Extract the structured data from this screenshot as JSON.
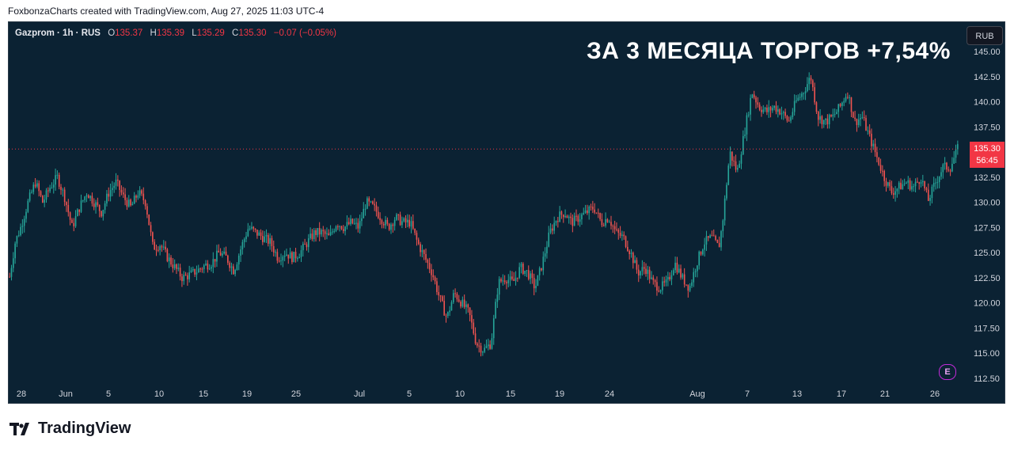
{
  "credit": "FoxbonzaCharts created with TradingView.com, Aug 27, 2025 11:03 UTC-4",
  "legend": {
    "symbol": "Gazprom · 1h · RUS",
    "open_label": "O",
    "open": "135.37",
    "high_label": "H",
    "high": "135.39",
    "low_label": "L",
    "low": "135.29",
    "close_label": "C",
    "close": "135.30",
    "change": "−0.07 (−0.05%)"
  },
  "headline": "ЗА 3 МЕСЯЦА ТОРГОВ +7,54%",
  "currency_button": "RUB",
  "last_price": {
    "price": "135.30",
    "countdown": "56:45"
  },
  "event_badge": "E",
  "logo_text": "TradingView",
  "colors": {
    "background": "#0b2233",
    "up": "#26a69a",
    "down": "#ef5350",
    "axis_text": "#d1d4dc",
    "last_price": "#f23645"
  },
  "chart_data": {
    "type": "candlestick",
    "y_ticks": [
      "145.00",
      "142.50",
      "140.00",
      "137.50",
      "135.00",
      "132.50",
      "130.00",
      "127.50",
      "125.00",
      "122.50",
      "120.00",
      "117.50",
      "115.00",
      "112.50"
    ],
    "ylim": [
      112.5,
      145
    ],
    "x_ticks": [
      "28",
      "Jun",
      "5",
      "10",
      "15",
      "19",
      "25",
      "Jul",
      "5",
      "10",
      "15",
      "19",
      "24",
      "Aug",
      "7",
      "13",
      "17",
      "21",
      "26"
    ],
    "last_price": 135.3,
    "price_path": [
      [
        0,
        122.6
      ],
      [
        3,
        126
      ],
      [
        6,
        127.5
      ],
      [
        10,
        130
      ],
      [
        14,
        132
      ],
      [
        18,
        130
      ],
      [
        22,
        131.5
      ],
      [
        26,
        132.5
      ],
      [
        30,
        130.5
      ],
      [
        34,
        127.5
      ],
      [
        38,
        129.5
      ],
      [
        42,
        131
      ],
      [
        46,
        130
      ],
      [
        50,
        129
      ],
      [
        54,
        131
      ],
      [
        58,
        132
      ],
      [
        62,
        130.5
      ],
      [
        66,
        129.5
      ],
      [
        70,
        131
      ],
      [
        74,
        130
      ],
      [
        78,
        125.5
      ],
      [
        82,
        125.8
      ],
      [
        86,
        124.5
      ],
      [
        90,
        123.5
      ],
      [
        94,
        122.5
      ],
      [
        98,
        122.8
      ],
      [
        102,
        123.2
      ],
      [
        106,
        123.7
      ],
      [
        110,
        124
      ],
      [
        114,
        125
      ],
      [
        118,
        124.5
      ],
      [
        122,
        123.2
      ],
      [
        126,
        125.5
      ],
      [
        130,
        127.5
      ],
      [
        134,
        127
      ],
      [
        138,
        126.5
      ],
      [
        142,
        126
      ],
      [
        146,
        124.5
      ],
      [
        150,
        125
      ],
      [
        154,
        124.5
      ],
      [
        158,
        125
      ],
      [
        162,
        126
      ],
      [
        166,
        127
      ],
      [
        170,
        127
      ],
      [
        174,
        126.5
      ],
      [
        178,
        128
      ],
      [
        182,
        127.5
      ],
      [
        186,
        128
      ],
      [
        190,
        127.5
      ],
      [
        194,
        130
      ],
      [
        198,
        129.5
      ],
      [
        202,
        128.5
      ],
      [
        206,
        127.5
      ],
      [
        210,
        128.5
      ],
      [
        214,
        128
      ],
      [
        218,
        128
      ],
      [
        222,
        126
      ],
      [
        226,
        124.5
      ],
      [
        230,
        123
      ],
      [
        234,
        120.5
      ],
      [
        238,
        118.5
      ],
      [
        242,
        121
      ],
      [
        246,
        120
      ],
      [
        250,
        119
      ],
      [
        254,
        116
      ],
      [
        258,
        115.3
      ],
      [
        262,
        116
      ],
      [
        266,
        122
      ],
      [
        270,
        122.5
      ],
      [
        274,
        122
      ],
      [
        278,
        123.5
      ],
      [
        282,
        123
      ],
      [
        286,
        121.5
      ],
      [
        290,
        124
      ],
      [
        294,
        127
      ],
      [
        298,
        128.5
      ],
      [
        302,
        129
      ],
      [
        306,
        128
      ],
      [
        310,
        128.5
      ],
      [
        314,
        129
      ],
      [
        318,
        129.5
      ],
      [
        322,
        128
      ],
      [
        326,
        128.5
      ],
      [
        330,
        127
      ],
      [
        334,
        126.5
      ],
      [
        338,
        125
      ],
      [
        342,
        123
      ],
      [
        346,
        123.5
      ],
      [
        350,
        122
      ],
      [
        354,
        121.5
      ],
      [
        358,
        122
      ],
      [
        362,
        124
      ],
      [
        366,
        122.5
      ],
      [
        370,
        121.5
      ],
      [
        374,
        124
      ],
      [
        378,
        126
      ],
      [
        382,
        126.5
      ],
      [
        386,
        125.5
      ],
      [
        388,
        128
      ],
      [
        392,
        135
      ],
      [
        396,
        133
      ],
      [
        400,
        137
      ],
      [
        404,
        141
      ],
      [
        408,
        139.5
      ],
      [
        412,
        139
      ],
      [
        416,
        139.5
      ],
      [
        420,
        139
      ],
      [
        424,
        138
      ],
      [
        428,
        140
      ],
      [
        432,
        141
      ],
      [
        436,
        142.5
      ],
      [
        440,
        138.5
      ],
      [
        444,
        138
      ],
      [
        448,
        138.5
      ],
      [
        452,
        139.5
      ],
      [
        456,
        141
      ],
      [
        460,
        138
      ],
      [
        464,
        138.5
      ],
      [
        468,
        136.5
      ],
      [
        472,
        134.5
      ],
      [
        476,
        132.5
      ],
      [
        480,
        131
      ],
      [
        484,
        131.5
      ],
      [
        488,
        132
      ],
      [
        492,
        131.5
      ],
      [
        496,
        132.5
      ],
      [
        500,
        130.2
      ],
      [
        504,
        132
      ],
      [
        508,
        133.5
      ],
      [
        512,
        133.5
      ],
      [
        516,
        135.3
      ]
    ],
    "n_bars": 518
  }
}
